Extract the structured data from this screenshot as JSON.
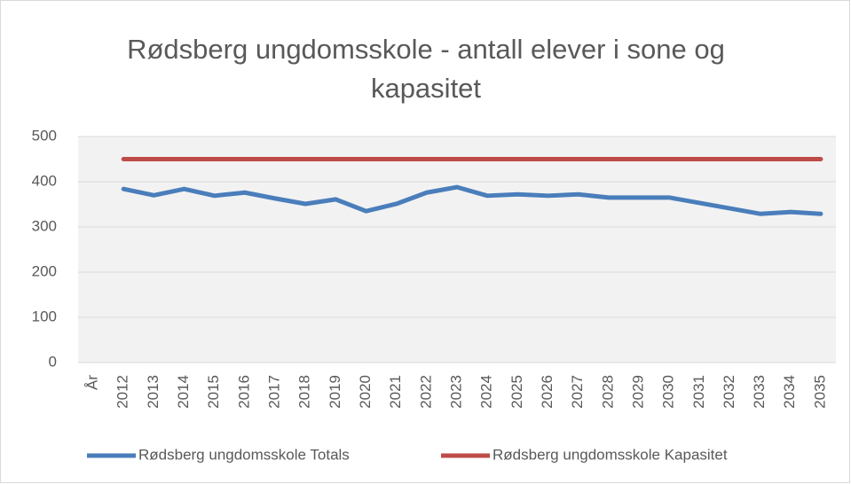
{
  "chart_data": {
    "type": "line",
    "title": "Rødsberg ungdomsskole - antall elever i sone og kapasitet",
    "categories": [
      "År",
      "2012",
      "2013",
      "2014",
      "2015",
      "2016",
      "2017",
      "2018",
      "2019",
      "2020",
      "2021",
      "2022",
      "2023",
      "2024",
      "2025",
      "2026",
      "2027",
      "2028",
      "2029",
      "2030",
      "2031",
      "2032",
      "2033",
      "2034",
      "2035"
    ],
    "series": [
      {
        "name": "Rødsberg ungdomsskole Totals",
        "color": "#4a7ebb",
        "values": [
          null,
          384,
          370,
          384,
          369,
          376,
          363,
          351,
          361,
          335,
          351,
          376,
          388,
          369,
          372,
          369,
          372,
          365,
          365,
          365,
          353,
          341,
          329,
          333,
          329
        ]
      },
      {
        "name": "Rødsberg ungdomsskole Kapasitet",
        "color": "#be4b48",
        "values": [
          null,
          450,
          450,
          450,
          450,
          450,
          450,
          450,
          450,
          450,
          450,
          450,
          450,
          450,
          450,
          450,
          450,
          450,
          450,
          450,
          450,
          450,
          450,
          450,
          450
        ]
      }
    ],
    "ylim": [
      0,
      500
    ],
    "yticks": [
      0,
      100,
      200,
      300,
      400,
      500
    ],
    "grid": true,
    "legend": "bottom"
  }
}
